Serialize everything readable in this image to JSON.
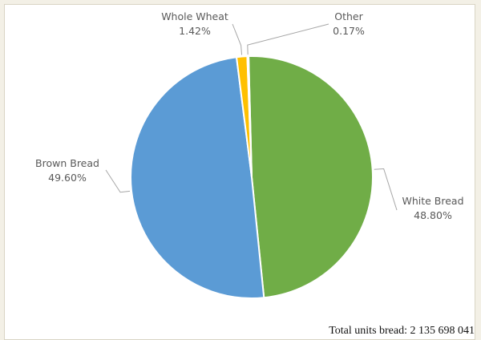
{
  "chart_data": {
    "type": "pie",
    "title": "",
    "slices": [
      {
        "name": "White Bread",
        "value": 48.8,
        "label": "48.80%",
        "color": "#70ad47"
      },
      {
        "name": "Brown Bread",
        "value": 49.6,
        "label": "49.60%",
        "color": "#5b9bd5"
      },
      {
        "name": "Whole Wheat",
        "value": 1.42,
        "label": "1.42%",
        "color": "#ffc000"
      },
      {
        "name": "Other",
        "value": 0.17,
        "label": "0.17%",
        "color": "#4472c4"
      }
    ],
    "legend": "none",
    "slice_labels": "outside-with-leader-lines"
  },
  "footer": {
    "total_label": "Total units bread:",
    "total_value": "2 135 698 041"
  }
}
